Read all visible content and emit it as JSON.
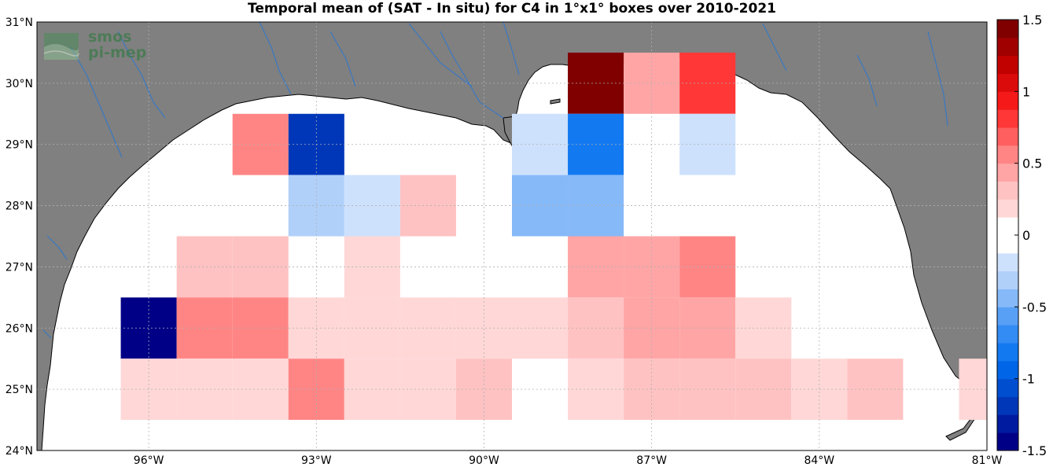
{
  "title": "Temporal mean of (SAT - In situ) for C4 in 1°x1° boxes over 2010-2021",
  "logo": {
    "line1": "smos",
    "line2": "pi-mep"
  },
  "colors": {
    "land": "#808080",
    "rivers": "#3a78c2",
    "coast": "#000000",
    "grid": "#b0b0b0"
  },
  "chart_data": {
    "type": "heatmap",
    "title": "Temporal mean of (SAT - In situ) for C4 in 1°x1° boxes over 2010-2021",
    "xlabel": "",
    "ylabel": "",
    "lon_range": [
      -98,
      -81
    ],
    "lat_range": [
      24,
      31
    ],
    "x_ticks": [
      {
        "value": -96,
        "label": "96°W"
      },
      {
        "value": -93,
        "label": "93°W"
      },
      {
        "value": -90,
        "label": "90°W"
      },
      {
        "value": -87,
        "label": "87°W"
      },
      {
        "value": -84,
        "label": "84°W"
      },
      {
        "value": -81,
        "label": "81°W"
      }
    ],
    "y_ticks": [
      {
        "value": 24,
        "label": "24°N"
      },
      {
        "value": 25,
        "label": "25°N"
      },
      {
        "value": 26,
        "label": "26°N"
      },
      {
        "value": 27,
        "label": "27°N"
      },
      {
        "value": 28,
        "label": "28°N"
      },
      {
        "value": 29,
        "label": "29°N"
      },
      {
        "value": 30,
        "label": "30°N"
      },
      {
        "value": 31,
        "label": "31°N"
      }
    ],
    "colorbar": {
      "range": [
        -1.5,
        1.5
      ],
      "levels": 24,
      "ticks": [
        {
          "value": 1.5,
          "label": "1.5"
        },
        {
          "value": 1,
          "label": "1"
        },
        {
          "value": 0.5,
          "label": "0.5"
        },
        {
          "value": 0,
          "label": "0"
        },
        {
          "value": -0.5,
          "label": "-0.5"
        },
        {
          "value": -1,
          "label": "-1"
        },
        {
          "value": -1.5,
          "label": "-1.5"
        }
      ]
    },
    "grid": true,
    "cells": [
      {
        "lon": -88,
        "lat": 30,
        "value": 1.5
      },
      {
        "lon": -87,
        "lat": 30,
        "value": 0.4
      },
      {
        "lon": -86,
        "lat": 30,
        "value": 0.85
      },
      {
        "lon": -94,
        "lat": 29,
        "value": 0.55
      },
      {
        "lon": -93,
        "lat": 29,
        "value": -1.15
      },
      {
        "lon": -89,
        "lat": 29,
        "value": -0.2
      },
      {
        "lon": -88,
        "lat": 29,
        "value": -0.8
      },
      {
        "lon": -86,
        "lat": 29,
        "value": -0.2
      },
      {
        "lon": -93,
        "lat": 28,
        "value": -0.35
      },
      {
        "lon": -92,
        "lat": 28,
        "value": -0.25
      },
      {
        "lon": -91,
        "lat": 28,
        "value": 0.3
      },
      {
        "lon": -89,
        "lat": 28,
        "value": -0.4
      },
      {
        "lon": -88,
        "lat": 28,
        "value": -0.45
      },
      {
        "lon": -95,
        "lat": 27,
        "value": 0.3
      },
      {
        "lon": -94,
        "lat": 27,
        "value": 0.3
      },
      {
        "lon": -92,
        "lat": 27,
        "value": 0.2
      },
      {
        "lon": -88,
        "lat": 27,
        "value": 0.45
      },
      {
        "lon": -87,
        "lat": 27,
        "value": 0.45
      },
      {
        "lon": -86,
        "lat": 27,
        "value": 0.6
      },
      {
        "lon": -96,
        "lat": 26,
        "value": -1.5
      },
      {
        "lon": -95,
        "lat": 26,
        "value": 0.5
      },
      {
        "lon": -94,
        "lat": 26,
        "value": 0.5
      },
      {
        "lon": -93,
        "lat": 26,
        "value": 0.2
      },
      {
        "lon": -92,
        "lat": 26,
        "value": 0.2
      },
      {
        "lon": -91,
        "lat": 26,
        "value": 0.2
      },
      {
        "lon": -90,
        "lat": 26,
        "value": 0.2
      },
      {
        "lon": -89,
        "lat": 26,
        "value": 0.2
      },
      {
        "lon": -88,
        "lat": 26,
        "value": 0.3
      },
      {
        "lon": -87,
        "lat": 26,
        "value": 0.45
      },
      {
        "lon": -86,
        "lat": 26,
        "value": 0.45
      },
      {
        "lon": -85,
        "lat": 26,
        "value": 0.2
      },
      {
        "lon": -96,
        "lat": 25,
        "value": 0.2
      },
      {
        "lon": -95,
        "lat": 25,
        "value": 0.2
      },
      {
        "lon": -94,
        "lat": 25,
        "value": 0.2
      },
      {
        "lon": -93,
        "lat": 25,
        "value": 0.5
      },
      {
        "lon": -92,
        "lat": 25,
        "value": 0.2
      },
      {
        "lon": -91,
        "lat": 25,
        "value": 0.2
      },
      {
        "lon": -90,
        "lat": 25,
        "value": 0.3
      },
      {
        "lon": -88,
        "lat": 25,
        "value": 0.2
      },
      {
        "lon": -87,
        "lat": 25,
        "value": 0.3
      },
      {
        "lon": -86,
        "lat": 25,
        "value": 0.3
      },
      {
        "lon": -85,
        "lat": 25,
        "value": 0.3
      },
      {
        "lon": -84,
        "lat": 25,
        "value": 0.2
      },
      {
        "lon": -83,
        "lat": 25,
        "value": 0.3
      },
      {
        "lon": -81,
        "lat": 25,
        "value": 0.2
      }
    ]
  }
}
